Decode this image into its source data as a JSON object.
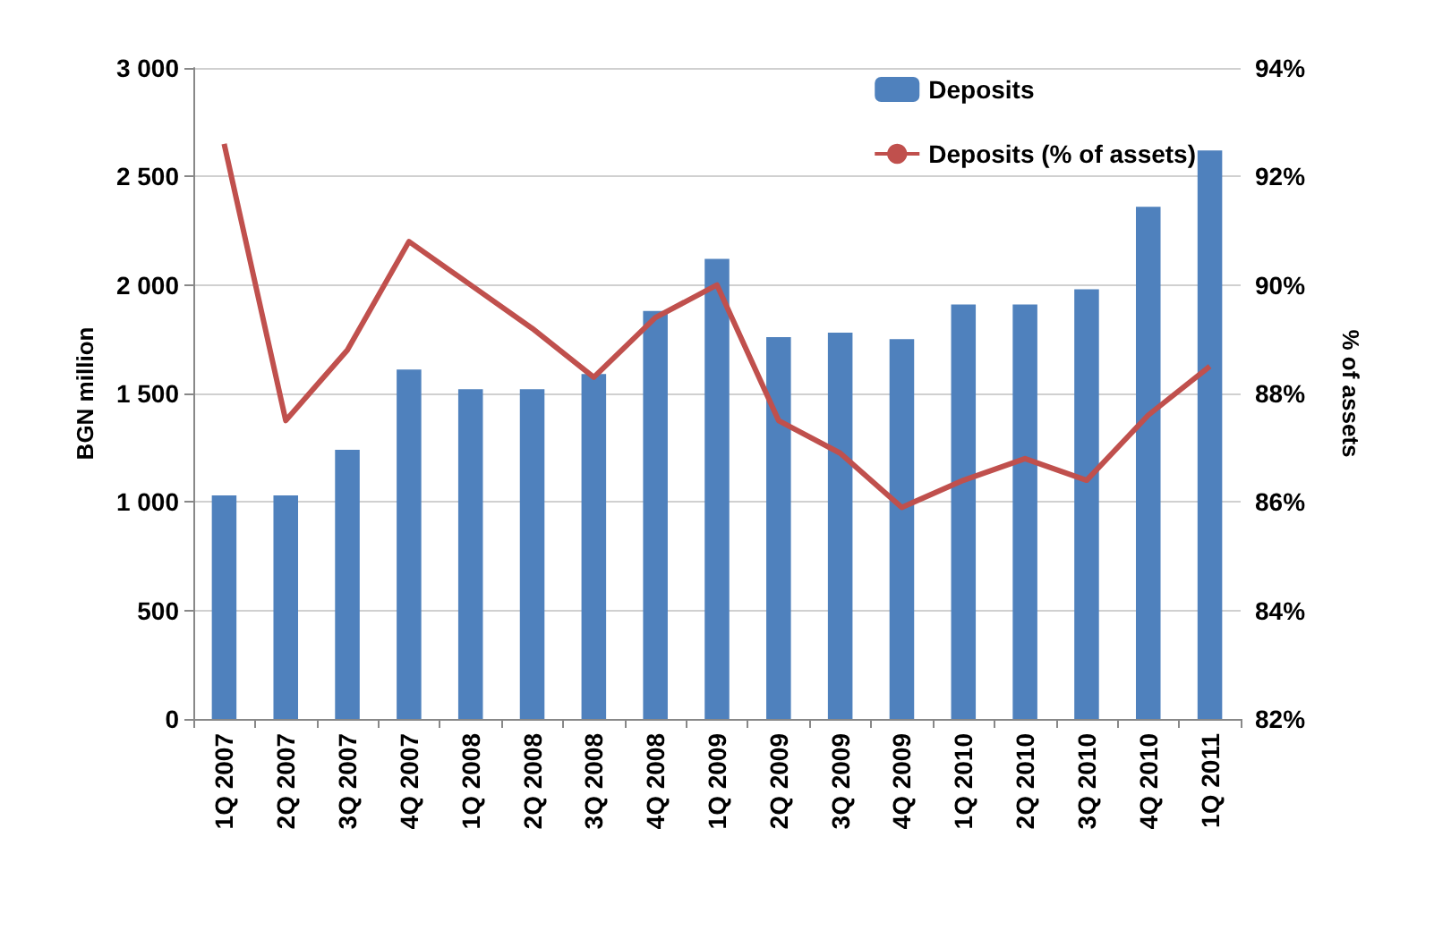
{
  "chart_data": {
    "type": "bar",
    "ylabel": "BGN million",
    "y2label": "% of assets",
    "categories": [
      "1Q 2007",
      "2Q 2007",
      "3Q 2007",
      "4Q 2007",
      "1Q 2008",
      "2Q 2008",
      "3Q 2008",
      "4Q 2008",
      "1Q 2009",
      "2Q 2009",
      "3Q 2009",
      "4Q 2009",
      "1Q 2010",
      "2Q 2010",
      "3Q 2010",
      "4Q 2010",
      "1Q 2011"
    ],
    "series": [
      {
        "name": "Deposits",
        "color": "#4f81bd",
        "values": [
          1030,
          1030,
          1240,
          1610,
          1520,
          1520,
          1590,
          1880,
          2120,
          1760,
          1780,
          1750,
          1910,
          1910,
          1980,
          2360,
          2620
        ]
      },
      {
        "name": "Deposits (% of assets)",
        "type": "line",
        "axis": "y2",
        "color": "#c0504d",
        "values": [
          92.6,
          87.5,
          88.8,
          90.8,
          90.0,
          89.2,
          88.3,
          89.4,
          90.0,
          87.5,
          86.9,
          85.9,
          86.4,
          86.8,
          86.4,
          87.6,
          88.5
        ]
      }
    ],
    "ylim": [
      0,
      3000
    ],
    "yticks": [
      0,
      500,
      {
        "value": 1000,
        "label": "1 000"
      },
      {
        "value": 1500,
        "label": "1 500"
      },
      {
        "value": 2000,
        "label": "2 000"
      },
      {
        "value": 2500,
        "label": "2 500"
      },
      {
        "value": 3000,
        "label": "3 000"
      }
    ],
    "y2lim": [
      82,
      94
    ],
    "y2ticks": [
      {
        "value": 82,
        "label": "82%"
      },
      {
        "value": 84,
        "label": "84%"
      },
      {
        "value": 86,
        "label": "86%"
      },
      {
        "value": 88,
        "label": "88%"
      },
      {
        "value": 90,
        "label": "90%"
      },
      {
        "value": 92,
        "label": "92%"
      },
      {
        "value": 94,
        "label": "94%"
      }
    ],
    "grid": "y",
    "legend": "top right",
    "marker": "none"
  }
}
